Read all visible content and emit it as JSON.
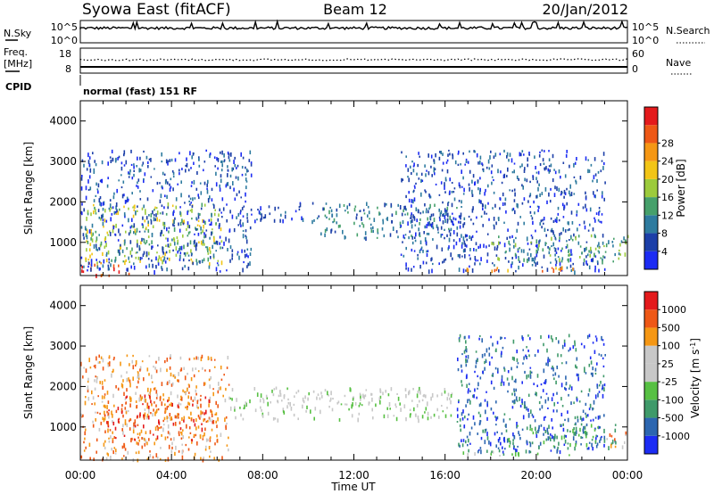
{
  "header": {
    "station": "Syowa East (fitACF)",
    "beam": "Beam 12",
    "date": "20/Jan/2012"
  },
  "top_panels": {
    "nsky_label": "N.Sky",
    "nsky_ticks": [
      "10^5",
      "10^0"
    ],
    "nsearch_label": "N.Search",
    "nsearch_ticks": [
      "10^5",
      "10^0"
    ],
    "freq_label_line1": "Freq.",
    "freq_label_line2": "[MHz]",
    "freq_ticks": [
      "18",
      "8"
    ],
    "nave_label": "Nave",
    "nave_ticks": [
      "60",
      "0"
    ],
    "cpid_label": "CPID",
    "cpid_text": "normal (fast) 151 RF"
  },
  "chart_data": [
    {
      "type": "heatmap",
      "title": "",
      "ylabel": "Slant Range [km]",
      "xlabel": "",
      "x_ticks": [
        "00:00",
        "04:00",
        "08:00",
        "12:00",
        "16:00",
        "20:00",
        "00:00"
      ],
      "y_ticks": [
        1000,
        2000,
        3000,
        4000
      ],
      "ylim": [
        180,
        4500
      ],
      "xlim_hours": [
        0,
        24
      ],
      "colorbar": {
        "label": "Power [dB]",
        "tick_labels": [
          "4",
          "8",
          "12",
          "16",
          "20",
          "24",
          "28"
        ],
        "colors": [
          "#1c2cf4",
          "#1c3fa8",
          "#2e7b9f",
          "#46a06b",
          "#9ccb3c",
          "#f2c516",
          "#f59714",
          "#ee5816",
          "#e41a1c"
        ]
      },
      "regions": [
        {
          "t0": 0.0,
          "t1": 2.2,
          "r0": 200,
          "r1": 520,
          "level": 7
        },
        {
          "t0": 0.2,
          "t1": 6.2,
          "r0": 500,
          "r1": 2000,
          "level": 4
        },
        {
          "t0": 0.0,
          "t1": 7.5,
          "r0": 300,
          "r1": 3300,
          "level": 1
        },
        {
          "t0": 7.5,
          "t1": 10.5,
          "r0": 1550,
          "r1": 2000,
          "level": 1
        },
        {
          "t0": 10.5,
          "t1": 16.5,
          "r0": 1100,
          "r1": 2000,
          "level": 2
        },
        {
          "t0": 12.0,
          "t1": 15.5,
          "r0": 1450,
          "r1": 1550,
          "level": 3
        },
        {
          "t0": 14.0,
          "t1": 23.0,
          "r0": 300,
          "r1": 3300,
          "level": 1
        },
        {
          "t0": 16.6,
          "t1": 21.8,
          "r0": 300,
          "r1": 420,
          "level": 6
        },
        {
          "t0": 18.0,
          "t1": 24.0,
          "r0": 550,
          "r1": 1200,
          "level": 3
        }
      ]
    },
    {
      "type": "heatmap",
      "title": "",
      "ylabel": "Slant Range [km]",
      "xlabel": "Time UT",
      "x_ticks": [
        "00:00",
        "04:00",
        "08:00",
        "12:00",
        "16:00",
        "20:00",
        "00:00"
      ],
      "y_ticks": [
        1000,
        2000,
        3000,
        4000
      ],
      "ylim": [
        180,
        4500
      ],
      "xlim_hours": [
        0,
        24
      ],
      "colorbar": {
        "label": "Velocity [m s^-1]",
        "tick_labels": [
          "1000",
          "500",
          "100",
          "25",
          "-25",
          "-100",
          "-500",
          "-1000"
        ],
        "colors": [
          "#1c2cf4",
          "#2c66b0",
          "#3f9a6a",
          "#57c043",
          "#c8c8c8",
          "#c8c8c8",
          "#f59714",
          "#ee5816",
          "#e41a1c"
        ]
      },
      "regions": [
        {
          "t0": 0.0,
          "t1": 6.5,
          "r0": 200,
          "r1": 2800,
          "level": 6
        },
        {
          "t0": 1.0,
          "t1": 6.0,
          "r0": 600,
          "r1": 1800,
          "level": 7
        },
        {
          "t0": 6.5,
          "t1": 16.5,
          "r0": 1200,
          "r1": 2000,
          "level": 4
        },
        {
          "t0": 16.5,
          "t1": 23.0,
          "r0": 400,
          "r1": 3300,
          "level": 1
        },
        {
          "t0": 16.6,
          "t1": 21.8,
          "r0": 300,
          "r1": 420,
          "level": 3
        },
        {
          "t0": 18.5,
          "t1": 23.5,
          "r0": 500,
          "r1": 1100,
          "level": 2
        },
        {
          "t0": 23.0,
          "t1": 24.0,
          "r0": 500,
          "r1": 900,
          "level": 6
        }
      ]
    }
  ]
}
